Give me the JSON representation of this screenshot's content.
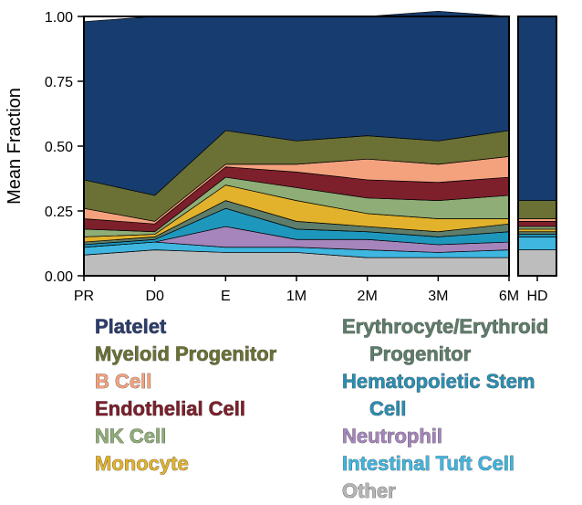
{
  "chart_data": {
    "type": "area",
    "stacked": true,
    "ylabel": "Mean Fraction",
    "ylim": [
      0,
      1
    ],
    "yticks": [
      "0.00",
      "0.25",
      "0.50",
      "0.75",
      "1.00"
    ],
    "panels": [
      {
        "x": [
          "PR",
          "D0",
          "E",
          "1M",
          "2M",
          "3M",
          "6M"
        ]
      },
      {
        "x": [
          "HD"
        ]
      }
    ],
    "series": [
      {
        "name": "Other",
        "color": "#bdbdbd",
        "values": [
          0.08,
          0.1,
          0.09,
          0.09,
          0.07,
          0.07,
          0.07
        ],
        "hd": 0.1
      },
      {
        "name": "Intestinal Tuft Cell",
        "color": "#3fb6e0",
        "values": [
          0.03,
          0.03,
          0.02,
          0.02,
          0.03,
          0.02,
          0.03
        ],
        "hd": 0.05
      },
      {
        "name": "Neutrophil",
        "color": "#a585bb",
        "values": [
          0.0,
          0.0,
          0.08,
          0.03,
          0.04,
          0.03,
          0.03
        ],
        "hd": 0.0
      },
      {
        "name": "Hematopoietic Stem Cell",
        "color": "#1e97bd",
        "values": [
          0.01,
          0.01,
          0.07,
          0.04,
          0.03,
          0.03,
          0.04
        ],
        "hd": 0.01
      },
      {
        "name": "Erythrocyte/Erythroid Progenitor",
        "color": "#5e7d6a",
        "values": [
          0.01,
          0.01,
          0.03,
          0.03,
          0.02,
          0.02,
          0.03
        ],
        "hd": 0.01
      },
      {
        "name": "Monocyte",
        "color": "#e2b22c",
        "values": [
          0.02,
          0.01,
          0.06,
          0.08,
          0.05,
          0.05,
          0.02
        ],
        "hd": 0.01
      },
      {
        "name": "NK Cell",
        "color": "#8fad77",
        "values": [
          0.03,
          0.01,
          0.03,
          0.05,
          0.06,
          0.07,
          0.09
        ],
        "hd": 0.01
      },
      {
        "name": "Endothelial Cell",
        "color": "#7e1f2c",
        "values": [
          0.04,
          0.03,
          0.04,
          0.06,
          0.07,
          0.07,
          0.07
        ],
        "hd": 0.02
      },
      {
        "name": "B Cell",
        "color": "#f4a27e",
        "values": [
          0.04,
          0.01,
          0.01,
          0.03,
          0.08,
          0.07,
          0.08
        ],
        "hd": 0.01
      },
      {
        "name": "Myeloid Progenitor",
        "color": "#6b7134",
        "values": [
          0.11,
          0.1,
          0.13,
          0.09,
          0.09,
          0.09,
          0.1
        ],
        "hd": 0.07
      },
      {
        "name": "Platelet",
        "color": "#173c6f",
        "values": [
          0.61,
          0.69,
          0.44,
          0.48,
          0.46,
          0.5,
          0.44
        ],
        "hd": 0.71
      }
    ]
  },
  "legend": {
    "left": [
      {
        "label": "Platelet",
        "color": "#2c3d6e"
      },
      {
        "label": "Myeloid Progenitor",
        "color": "#6b7134"
      },
      {
        "label": "B Cell",
        "color": "#f4a27e"
      },
      {
        "label": "Endothelial Cell",
        "color": "#7e1f2c"
      },
      {
        "label": "NK Cell",
        "color": "#8fad77"
      },
      {
        "label": "Monocyte",
        "color": "#e2b22c"
      }
    ],
    "right": [
      {
        "label": "Erythrocyte/Erythroid",
        "cont": "Progenitor",
        "color": "#5e7d6a"
      },
      {
        "label": "Hematopoietic Stem",
        "cont": "Cell",
        "color": "#2a8fb4"
      },
      {
        "label": "Neutrophil",
        "color": "#a585bb"
      },
      {
        "label": "Intestinal Tuft Cell",
        "color": "#3fb6e0"
      },
      {
        "label": "Other",
        "color": "#b5b5b5"
      }
    ]
  }
}
